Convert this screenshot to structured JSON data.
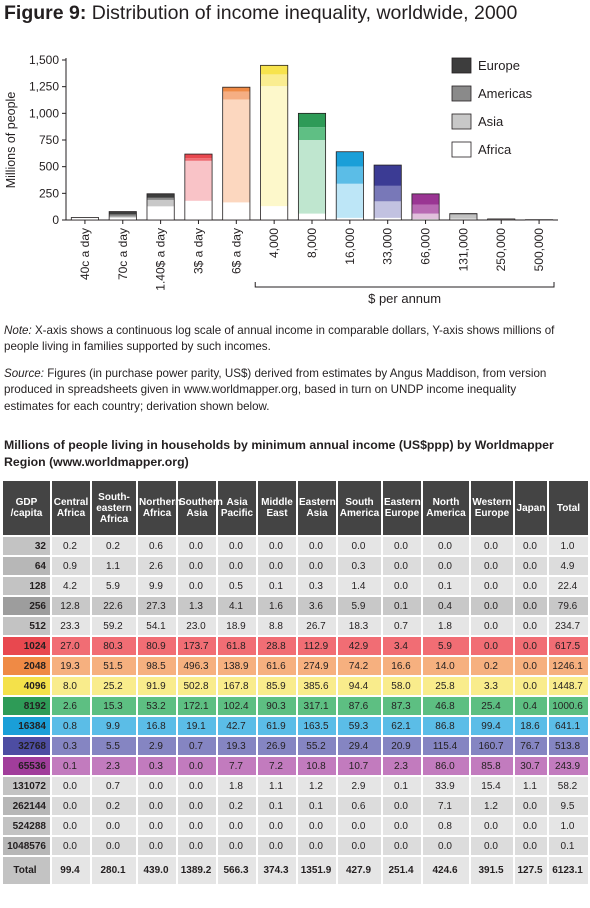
{
  "title": {
    "label": "Figure 9:",
    "text": "Distribution of income inequality, worldwide, 2000"
  },
  "notes": {
    "note_label": "Note:",
    "note_text": "X-axis shows a continuous log scale of annual income in comparable dollars, Y-axis shows millions of people living in families supported by such incomes.",
    "source_label": "Source:",
    "source_text": "Figures (in purchase power parity, US$) derived from estimates by Angus Maddison, from version produced in spreadsheets given in www.worldmapper.org, based in turn on UNDP income inequality estimates for each country; derivation shown below."
  },
  "chart_data": {
    "type": "bar",
    "stacked": true,
    "ylabel": "Millions of people",
    "xlabel": "$ per annum",
    "ylim": [
      0,
      1500
    ],
    "yticks": [
      0,
      250,
      500,
      750,
      1000,
      1250,
      1500
    ],
    "categories": [
      "40c a day",
      "70c a day",
      "1.40$ a day",
      "3$ a day",
      "6$ a day",
      "4,000",
      "8,000",
      "16,000",
      "33,000",
      "66,000",
      "131,000",
      "250,000",
      "500,000"
    ],
    "per_annum_bracket_from": 5,
    "legend": {
      "position": "top-right",
      "entries": [
        {
          "name": "Europe",
          "color": "#3d3d3d"
        },
        {
          "name": "Americas",
          "color": "#8a8a8a"
        },
        {
          "name": "Asia",
          "color": "#c8c8c8"
        },
        {
          "name": "Africa",
          "color": "#ffffff"
        }
      ]
    },
    "bar_colors": {
      "dark": [
        "#bdbdbd",
        "#3d3d3d",
        "#3d3d3d",
        "#e8484f",
        "#ef8a45",
        "#f7e34d",
        "#2e9b57",
        "#1a9fd8",
        "#3b3b94",
        "#9a3593",
        "#999999",
        "#999999",
        "#999999"
      ],
      "mid": [
        "#d5d5d5",
        "#8a8a8a",
        "#8a8a8a",
        "#ee6b72",
        "#f5ae83",
        "#faed90",
        "#5fbf84",
        "#5bbde7",
        "#7878b8",
        "#b86ab3",
        "#c2c2c2",
        "#c2c2c2",
        "#c2c2c2"
      ],
      "light": [
        "#e8e8e8",
        "#c8c8c8",
        "#c8c8c8",
        "#f9c3c7",
        "#fcd7bf",
        "#fdf8cb",
        "#bfe6cf",
        "#bde6f7",
        "#c2c2e1",
        "#e1c0dc",
        "#dedede",
        "#dedede",
        "#dedede"
      ]
    },
    "series": [
      {
        "name": "Africa",
        "values": [
          20,
          22,
          128,
          180,
          165,
          130,
          60,
          20,
          20,
          10,
          5,
          2,
          1
        ]
      },
      {
        "name": "Asia",
        "values": [
          0,
          10,
          60,
          375,
          965,
          1125,
          690,
          320,
          155,
          50,
          10,
          3,
          1
        ]
      },
      {
        "name": "Americas",
        "values": [
          0,
          20,
          20,
          25,
          75,
          110,
          120,
          160,
          145,
          85,
          30,
          3,
          1
        ]
      },
      {
        "name": "Europe",
        "values": [
          3,
          27,
          38,
          38,
          40,
          85,
          130,
          140,
          195,
          100,
          15,
          2,
          0
        ]
      }
    ]
  },
  "table": {
    "title": "Millions of people living in households by minimum annual income (US$ppp) by Worldmapper Region (www.worldmapper.org)",
    "headers": [
      "GDP /capita",
      "Central Africa",
      "South-eastern Africa",
      "Northern Africa",
      "Southern Asia",
      "Asia Pacific",
      "Middle East",
      "Eastern Asia",
      "South America",
      "Eastern Europe",
      "North America",
      "Western Europe",
      "Japan",
      "Total"
    ],
    "rows": [
      {
        "gdp": "32",
        "values": [
          "0.2",
          "0.2",
          "0.6",
          "0.0",
          "0.0",
          "0.0",
          "0.0",
          "0.0",
          "0.0",
          "0.0",
          "0.0",
          "0.0",
          "1.0"
        ],
        "colors": [
          "#c3c3c3",
          "#e5e5e5"
        ]
      },
      {
        "gdp": "64",
        "values": [
          "0.9",
          "1.1",
          "2.6",
          "0.0",
          "0.0",
          "0.0",
          "0.0",
          "0.3",
          "0.0",
          "0.0",
          "0.0",
          "0.0",
          "4.9"
        ],
        "colors": [
          "#b7b7b7",
          "#dcdcdc"
        ]
      },
      {
        "gdp": "128",
        "values": [
          "4.2",
          "5.9",
          "9.9",
          "0.0",
          "0.5",
          "0.1",
          "0.3",
          "1.4",
          "0.0",
          "0.1",
          "0.0",
          "0.0",
          "22.4"
        ],
        "colors": [
          "#c3c3c3",
          "#e5e5e5"
        ]
      },
      {
        "gdp": "256",
        "values": [
          "12.8",
          "22.6",
          "27.3",
          "1.3",
          "4.1",
          "1.6",
          "3.6",
          "5.9",
          "0.1",
          "0.4",
          "0.0",
          "0.0",
          "79.6"
        ],
        "colors": [
          "#9d9d9d",
          "#c8c8c8"
        ]
      },
      {
        "gdp": "512",
        "values": [
          "23.3",
          "59.2",
          "54.1",
          "23.0",
          "18.9",
          "8.8",
          "26.7",
          "18.3",
          "0.7",
          "1.8",
          "0.0",
          "0.0",
          "234.7"
        ],
        "colors": [
          "#c3c3c3",
          "#e5e5e5"
        ]
      },
      {
        "gdp": "1024",
        "values": [
          "27.0",
          "80.3",
          "80.9",
          "173.7",
          "61.8",
          "28.8",
          "112.9",
          "42.9",
          "3.4",
          "5.9",
          "0.0",
          "0.0",
          "617.5"
        ],
        "colors": [
          "#e8484f",
          "#f16d74"
        ]
      },
      {
        "gdp": "2048",
        "values": [
          "19.3",
          "51.5",
          "98.5",
          "496.3",
          "138.9",
          "61.6",
          "274.9",
          "74.2",
          "16.6",
          "14.0",
          "0.2",
          "0.0",
          "1246.1"
        ],
        "colors": [
          "#ef8a45",
          "#f6b07f"
        ]
      },
      {
        "gdp": "4096",
        "values": [
          "8.0",
          "25.2",
          "91.9",
          "502.8",
          "167.8",
          "85.9",
          "385.6",
          "94.4",
          "58.0",
          "25.8",
          "3.3",
          "0.0",
          "1448.7"
        ],
        "colors": [
          "#f4e14a",
          "#f9ec8c"
        ]
      },
      {
        "gdp": "8192",
        "values": [
          "2.6",
          "15.3",
          "53.2",
          "172.1",
          "102.4",
          "90.3",
          "317.1",
          "87.6",
          "87.3",
          "46.8",
          "25.4",
          "0.4",
          "1000.6"
        ],
        "colors": [
          "#2e9b57",
          "#5dbf82"
        ]
      },
      {
        "gdp": "16384",
        "values": [
          "0.8",
          "9.9",
          "16.8",
          "19.1",
          "42.7",
          "61.9",
          "163.5",
          "59.3",
          "62.1",
          "86.8",
          "99.4",
          "18.6",
          "641.1"
        ],
        "colors": [
          "#1a9fd8",
          "#5bbde7"
        ]
      },
      {
        "gdp": "32768",
        "values": [
          "0.3",
          "5.5",
          "2.9",
          "0.7",
          "19.3",
          "26.9",
          "55.2",
          "29.4",
          "20.9",
          "115.4",
          "160.7",
          "76.7",
          "513.8"
        ],
        "colors": [
          "#4d4da2",
          "#8585c2"
        ]
      },
      {
        "gdp": "65536",
        "values": [
          "0.1",
          "2.3",
          "0.3",
          "0.0",
          "7.7",
          "7.2",
          "10.8",
          "10.7",
          "2.3",
          "86.0",
          "85.8",
          "30.7",
          "243.9"
        ],
        "colors": [
          "#a13d9b",
          "#c27bbe"
        ]
      },
      {
        "gdp": "131072",
        "values": [
          "0.0",
          "0.7",
          "0.0",
          "0.0",
          "1.8",
          "1.1",
          "1.2",
          "2.9",
          "0.1",
          "33.9",
          "15.4",
          "1.1",
          "58.2"
        ],
        "colors": [
          "#c3c3c3",
          "#e5e5e5"
        ]
      },
      {
        "gdp": "262144",
        "values": [
          "0.0",
          "0.2",
          "0.0",
          "0.0",
          "0.2",
          "0.1",
          "0.1",
          "0.6",
          "0.0",
          "7.1",
          "1.2",
          "0.0",
          "9.5"
        ],
        "colors": [
          "#b7b7b7",
          "#dcdcdc"
        ]
      },
      {
        "gdp": "524288",
        "values": [
          "0.0",
          "0.0",
          "0.0",
          "0.0",
          "0.0",
          "0.0",
          "0.0",
          "0.0",
          "0.0",
          "0.8",
          "0.0",
          "0.0",
          "1.0"
        ],
        "colors": [
          "#c3c3c3",
          "#e5e5e5"
        ]
      },
      {
        "gdp": "1048576",
        "values": [
          "0.0",
          "0.0",
          "0.0",
          "0.0",
          "0.0",
          "0.0",
          "0.0",
          "0.0",
          "0.0",
          "0.0",
          "0.0",
          "0.0",
          "0.1"
        ],
        "colors": [
          "#b7b7b7",
          "#dcdcdc"
        ]
      }
    ],
    "total": {
      "gdp": "Total",
      "values": [
        "99.4",
        "280.1",
        "439.0",
        "1389.2",
        "566.3",
        "374.3",
        "1351.9",
        "427.9",
        "251.4",
        "424.6",
        "391.5",
        "127.5",
        "6123.1"
      ],
      "colors": [
        "#c3c3c3",
        "#e5e5e5"
      ]
    }
  }
}
